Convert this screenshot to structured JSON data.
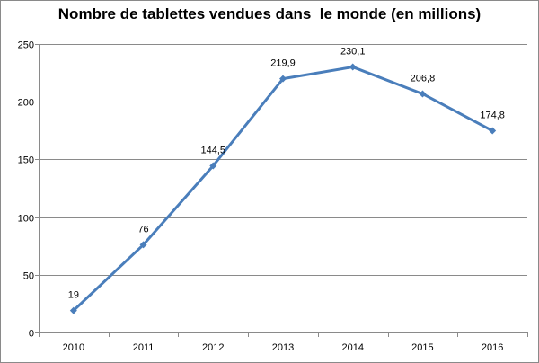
{
  "chart_data": {
    "type": "line",
    "title": "Nombre de tablettes vendues dans  le monde (en millions)",
    "categories": [
      "2010",
      "2011",
      "2012",
      "2013",
      "2014",
      "2015",
      "2016"
    ],
    "series": [
      {
        "values": [
          19,
          76,
          144.5,
          219.9,
          230.1,
          206.8,
          174.8
        ],
        "data_labels": [
          "19",
          "76",
          "144,5",
          "219,9",
          "230,1",
          "206,8",
          "174,8"
        ]
      }
    ],
    "y_ticks": [
      "0",
      "50",
      "100",
      "150",
      "200",
      "250"
    ],
    "ylim": [
      0,
      250
    ],
    "grid": true,
    "legend": "none",
    "colors": {
      "line": "#4a7ebb",
      "grid": "#8a8a8a",
      "axis": "#8a8a8a"
    }
  }
}
